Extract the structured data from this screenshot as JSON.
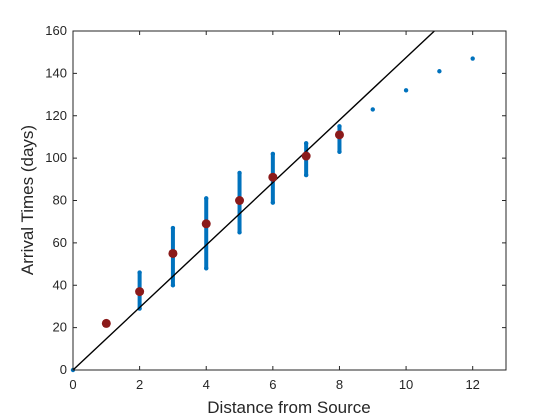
{
  "chart_data": {
    "type": "scatter",
    "title": "",
    "xlabel": "Distance from Source",
    "ylabel": "Arrival Times (days)",
    "xlim": [
      0,
      13
    ],
    "ylim": [
      0,
      160
    ],
    "xticks": [
      0,
      2,
      4,
      6,
      8,
      10,
      12
    ],
    "yticks": [
      0,
      20,
      40,
      60,
      80,
      100,
      120,
      140,
      160
    ],
    "grid": false,
    "colors": {
      "scatter": "#0072BD",
      "mean": "#8B1A1A",
      "line": "#000000",
      "axis": "#262626"
    },
    "series": [
      {
        "kind": "vertical-spread",
        "points": [
          {
            "x": 2,
            "ymin": 29,
            "ymax": 46
          },
          {
            "x": 3,
            "ymin": 40,
            "ymax": 67
          },
          {
            "x": 4,
            "ymin": 48,
            "ymax": 81
          },
          {
            "x": 5,
            "ymin": 65,
            "ymax": 93
          },
          {
            "x": 6,
            "ymin": 79,
            "ymax": 102
          },
          {
            "x": 7,
            "ymin": 92,
            "ymax": 107
          },
          {
            "x": 8,
            "ymin": 103,
            "ymax": 115
          }
        ],
        "single_points": [
          {
            "x": 0,
            "y": 0
          },
          {
            "x": 9,
            "y": 123
          },
          {
            "x": 10,
            "y": 132
          },
          {
            "x": 11,
            "y": 141
          },
          {
            "x": 12,
            "y": 147
          }
        ]
      },
      {
        "kind": "mean",
        "x": [
          1,
          2,
          3,
          4,
          5,
          6,
          7,
          8
        ],
        "y": [
          22,
          37,
          55,
          69,
          80,
          91,
          101,
          111
        ]
      },
      {
        "kind": "line",
        "x": [
          0,
          10.85
        ],
        "y": [
          0,
          160
        ]
      }
    ]
  }
}
